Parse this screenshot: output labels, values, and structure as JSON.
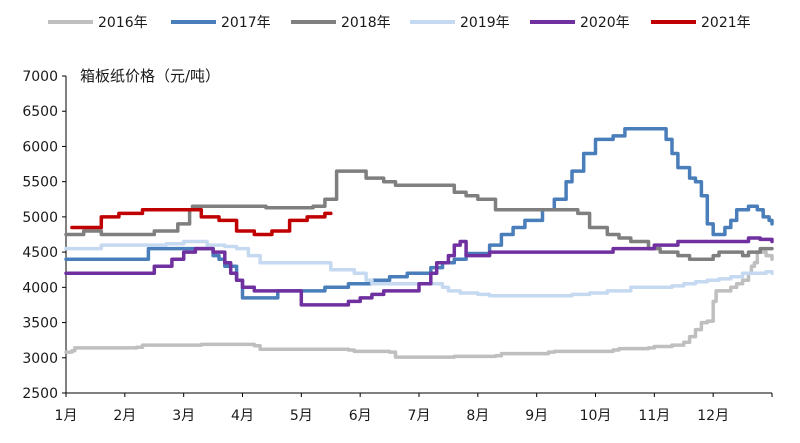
{
  "chart_data": {
    "type": "line",
    "title": "箱板纸价格（元/吨）",
    "xlabel": "",
    "ylabel": "",
    "ylim": [
      2500,
      7000
    ],
    "y_ticks": [
      "2500",
      "3000",
      "3500",
      "4000",
      "4500",
      "5000",
      "5500",
      "6000",
      "6500",
      "7000"
    ],
    "x_ticks": [
      "1月",
      "2月",
      "3月",
      "4月",
      "5月",
      "6月",
      "7月",
      "8月",
      "9月",
      "10月",
      "11月",
      "12月"
    ],
    "x_range": [
      1,
      13
    ],
    "grid": false,
    "legend_position": "top",
    "series": [
      {
        "name": "2016年",
        "color": "#bfbfbf",
        "x": [
          1,
          1.1,
          1.15,
          2.2,
          2.3,
          3.2,
          3.3,
          4.2,
          4.3,
          5.8,
          5.9,
          6.5,
          6.6,
          7.5,
          7.6,
          8.3,
          8.4,
          9.2,
          9.3,
          10.3,
          10.4,
          10.9,
          11,
          11.3,
          11.5,
          11.6,
          11.7,
          11.8,
          11.9,
          12,
          12.05,
          12.15,
          12.3,
          12.4,
          12.5,
          12.6,
          12.65,
          12.7,
          12.75,
          12.9,
          13
        ],
        "y": [
          3080,
          3100,
          3140,
          3150,
          3180,
          3180,
          3190,
          3170,
          3120,
          3110,
          3090,
          3080,
          3010,
          3010,
          3020,
          3030,
          3060,
          3080,
          3090,
          3110,
          3130,
          3140,
          3160,
          3180,
          3220,
          3300,
          3400,
          3500,
          3520,
          3800,
          3950,
          3950,
          4000,
          4050,
          4100,
          4200,
          4300,
          4350,
          4500,
          4450,
          4400
        ]
      },
      {
        "name": "2017年",
        "color": "#4a7ebb",
        "x": [
          1,
          2.3,
          2.4,
          2.8,
          3.3,
          3.5,
          3.6,
          3.7,
          3.8,
          3.9,
          4,
          4.2,
          4.6,
          4.8,
          5.4,
          5.8,
          6.2,
          6.5,
          6.8,
          7.2,
          7.4,
          7.6,
          7.8,
          8.2,
          8.4,
          8.6,
          8.8,
          9.1,
          9.3,
          9.5,
          9.6,
          9.8,
          10,
          10.3,
          10.5,
          11.1,
          11.2,
          11.3,
          11.4,
          11.6,
          11.7,
          11.8,
          11.9,
          12,
          12.1,
          12.2,
          12.3,
          12.4,
          12.5,
          12.6,
          12.7,
          12.75,
          12.85,
          12.95,
          13
        ],
        "y": [
          4400,
          4400,
          4550,
          4550,
          4550,
          4450,
          4400,
          4300,
          4300,
          4100,
          3850,
          3850,
          3950,
          3950,
          4000,
          4050,
          4100,
          4150,
          4200,
          4280,
          4350,
          4400,
          4480,
          4600,
          4750,
          4850,
          4950,
          5100,
          5250,
          5500,
          5650,
          5900,
          6100,
          6150,
          6250,
          6250,
          6100,
          5900,
          5700,
          5550,
          5500,
          5300,
          4900,
          4750,
          4750,
          4850,
          4950,
          5100,
          5100,
          5150,
          5150,
          5100,
          5000,
          4950,
          4900
        ]
      },
      {
        "name": "2018年",
        "color": "#7f7f7f",
        "x": [
          1,
          1.15,
          1.3,
          1.6,
          2.4,
          2.5,
          2.9,
          3.05,
          3.1,
          3.15,
          3.3,
          3.4,
          4.1,
          4.3,
          4.4,
          4.8,
          5.2,
          5.4,
          5.6,
          5.9,
          6.1,
          6.2,
          6.4,
          6.6,
          6.8,
          7,
          7.3,
          7.6,
          7.8,
          8,
          8.1,
          8.3,
          8.5,
          8.7,
          8.9,
          9.3,
          9.5,
          9.7,
          9.9,
          10.2,
          10.4,
          10.6,
          10.9,
          11.1,
          11.2,
          11.4,
          11.6,
          11.8,
          12,
          12.1,
          12.3,
          12.5,
          12.6,
          12.8,
          13
        ],
        "y": [
          4750,
          4750,
          4800,
          4750,
          4750,
          4800,
          4900,
          4900,
          5100,
          5150,
          5150,
          5150,
          5150,
          5150,
          5130,
          5130,
          5150,
          5250,
          5650,
          5650,
          5550,
          5550,
          5500,
          5450,
          5450,
          5450,
          5450,
          5350,
          5300,
          5250,
          5250,
          5100,
          5100,
          5100,
          5100,
          5100,
          5100,
          5050,
          4850,
          4750,
          4700,
          4650,
          4550,
          4500,
          4500,
          4450,
          4400,
          4400,
          4450,
          4500,
          4500,
          4450,
          4500,
          4550,
          4550
        ]
      },
      {
        "name": "2019年",
        "color": "#c5d9f1",
        "x": [
          1,
          1.3,
          1.6,
          2.4,
          2.7,
          3,
          3.3,
          3.4,
          3.6,
          3.7,
          3.9,
          4.1,
          4.3,
          4.7,
          5.2,
          5.5,
          5.9,
          6.1,
          6.2,
          7.2,
          7.4,
          7.5,
          7.7,
          8,
          8.2,
          8.5,
          8.8,
          9.3,
          9.6,
          9.9,
          10.2,
          10.4,
          10.6,
          11.1,
          11.3,
          11.5,
          11.7,
          11.9,
          12.1,
          12.3,
          12.5,
          12.7,
          12.9,
          13
        ],
        "y": [
          4550,
          4550,
          4600,
          4600,
          4620,
          4650,
          4650,
          4600,
          4600,
          4580,
          4550,
          4450,
          4350,
          4350,
          4350,
          4250,
          4200,
          4100,
          4050,
          4050,
          4000,
          3950,
          3920,
          3900,
          3880,
          3880,
          3880,
          3880,
          3900,
          3920,
          3950,
          3950,
          4000,
          4000,
          4020,
          4050,
          4080,
          4100,
          4120,
          4150,
          4200,
          4200,
          4220,
          4200
        ]
      },
      {
        "name": "2020年",
        "color": "#7030a0",
        "x": [
          1,
          1.5,
          2.3,
          2.5,
          2.6,
          2.8,
          3,
          3.2,
          3.3,
          3.45,
          3.5,
          3.7,
          3.8,
          3.9,
          4,
          4.2,
          4.5,
          4.8,
          5,
          5.4,
          5.8,
          6,
          6.2,
          6.4,
          6.6,
          7,
          7.2,
          7.3,
          7.5,
          7.6,
          7.7,
          7.8,
          8,
          8.2,
          8.5,
          9,
          9.5,
          10,
          10.3,
          10.6,
          10.8,
          11,
          11.2,
          11.4,
          11.8,
          12.2,
          12.5,
          12.6,
          12.7,
          12.8,
          13
        ],
        "y": [
          4200,
          4200,
          4200,
          4300,
          4300,
          4400,
          4500,
          4550,
          4550,
          4550,
          4500,
          4350,
          4200,
          4100,
          4000,
          3950,
          3950,
          3950,
          3750,
          3750,
          3800,
          3850,
          3900,
          3950,
          3950,
          4050,
          4200,
          4350,
          4450,
          4600,
          4650,
          4450,
          4450,
          4500,
          4500,
          4500,
          4500,
          4500,
          4550,
          4550,
          4550,
          4600,
          4600,
          4650,
          4650,
          4650,
          4650,
          4700,
          4700,
          4680,
          4650
        ]
      },
      {
        "name": "2021年",
        "color": "#c00000",
        "x": [
          1.1,
          1.5,
          1.6,
          1.9,
          2,
          2.3,
          2.6,
          2.9,
          3.1,
          3.3,
          3.6,
          3.9,
          4.2,
          4.5,
          4.8,
          5.1,
          5.3,
          5.4,
          5.5
        ],
        "y": [
          4850,
          4850,
          5000,
          5050,
          5050,
          5100,
          5100,
          5100,
          5100,
          5000,
          4950,
          4800,
          4750,
          4800,
          4950,
          5000,
          5000,
          5050,
          5050
        ]
      }
    ]
  }
}
